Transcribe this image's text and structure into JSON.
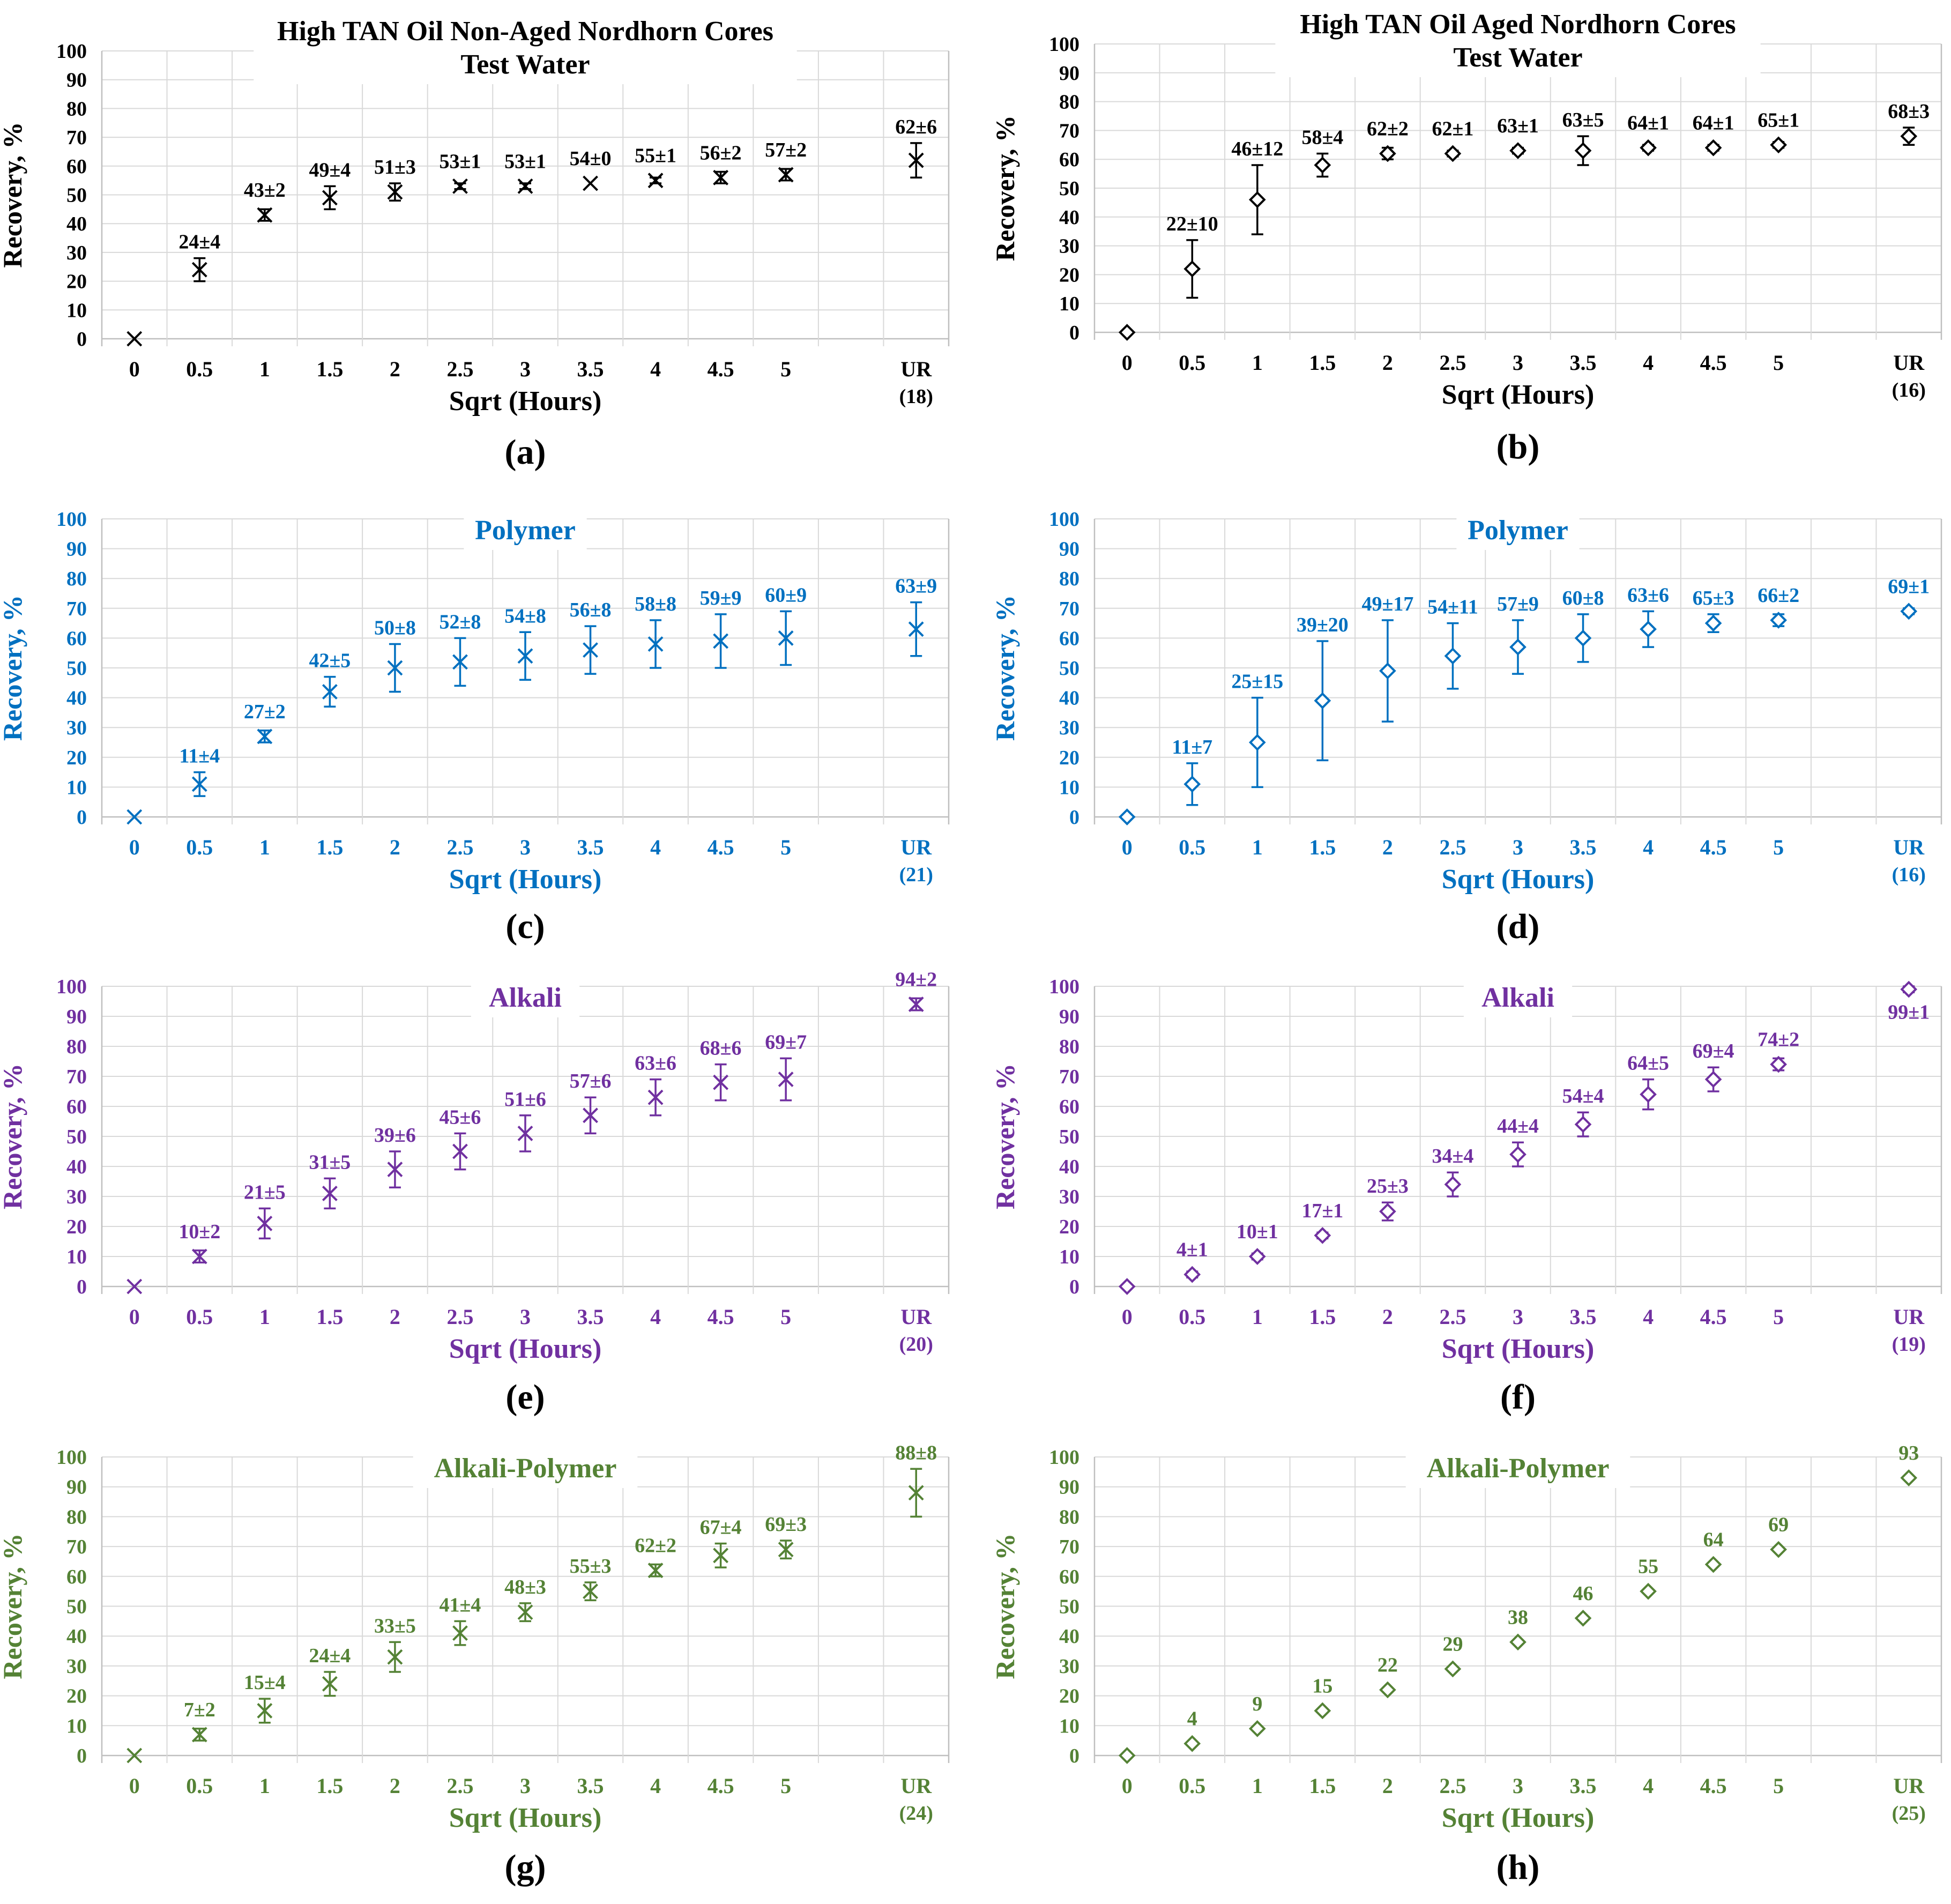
{
  "figure": {
    "panels": [
      {
        "label": "(a)",
        "chart_data": {
          "type": "scatter",
          "title": [
            "High TAN Oil Non-Aged Nordhorn Cores",
            "Test Water"
          ],
          "xlabel": "Sqrt (Hours)",
          "ylabel": "Recovery, %",
          "ylim": [
            0,
            100
          ],
          "yticks": [
            0,
            10,
            20,
            30,
            40,
            50,
            60,
            70,
            80,
            90,
            100
          ],
          "categories": [
            "0",
            "0.5",
            "1",
            "1.5",
            "2",
            "2.5",
            "3",
            "3.5",
            "4",
            "4.5",
            "5",
            "",
            "UR"
          ],
          "x_extra_label": "(18)",
          "marker": "x",
          "color": "#000000",
          "values": [
            0,
            24,
            43,
            49,
            51,
            53,
            53,
            54,
            55,
            56,
            57,
            null,
            62
          ],
          "errors": [
            0,
            4,
            2,
            4,
            3,
            1,
            1,
            0,
            1,
            2,
            2,
            null,
            6
          ],
          "data_labels": [
            "",
            "24±4",
            "43±2",
            "49±4",
            "51±3",
            "53±1",
            "53±1",
            "54±0",
            "55±1",
            "56±2",
            "57±2",
            "",
            "62±6"
          ]
        }
      },
      {
        "label": "(b)",
        "chart_data": {
          "type": "scatter",
          "title": [
            "High TAN Oil Aged Nordhorn Cores",
            "Test Water"
          ],
          "xlabel": "Sqrt (Hours)",
          "ylabel": "Recovery, %",
          "ylim": [
            0,
            100
          ],
          "yticks": [
            0,
            10,
            20,
            30,
            40,
            50,
            60,
            70,
            80,
            90,
            100
          ],
          "categories": [
            "0",
            "0.5",
            "1",
            "1.5",
            "2",
            "2.5",
            "3",
            "3.5",
            "4",
            "4.5",
            "5",
            "",
            "UR"
          ],
          "x_extra_label": "(16)",
          "marker": "diamond",
          "color": "#000000",
          "values": [
            0,
            22,
            46,
            58,
            62,
            62,
            63,
            63,
            64,
            64,
            65,
            null,
            68
          ],
          "errors": [
            0,
            10,
            12,
            4,
            2,
            1,
            1,
            5,
            1,
            1,
            1,
            null,
            3
          ],
          "data_labels": [
            "",
            "22±10",
            "46±12",
            "58±4",
            "62±2",
            "62±1",
            "63±1",
            "63±5",
            "64±1",
            "64±1",
            "65±1",
            "",
            "68±3"
          ]
        }
      },
      {
        "label": "(c)",
        "chart_data": {
          "type": "scatter",
          "title": [
            "Polymer"
          ],
          "xlabel": "Sqrt (Hours)",
          "ylabel": "Recovery, %",
          "ylim": [
            0,
            100
          ],
          "yticks": [
            0,
            10,
            20,
            30,
            40,
            50,
            60,
            70,
            80,
            90,
            100
          ],
          "categories": [
            "0",
            "0.5",
            "1",
            "1.5",
            "2",
            "2.5",
            "3",
            "3.5",
            "4",
            "4.5",
            "5",
            "",
            "UR"
          ],
          "x_extra_label": "(21)",
          "marker": "x",
          "color": "#0070c0",
          "values": [
            0,
            11,
            27,
            42,
            50,
            52,
            54,
            56,
            58,
            59,
            60,
            null,
            63
          ],
          "errors": [
            0,
            4,
            2,
            5,
            8,
            8,
            8,
            8,
            8,
            9,
            9,
            null,
            9
          ],
          "data_labels": [
            "",
            "11±4",
            "27±2",
            "42±5",
            "50±8",
            "52±8",
            "54±8",
            "56±8",
            "58±8",
            "59±9",
            "60±9",
            "",
            "63±9"
          ]
        }
      },
      {
        "label": "(d)",
        "chart_data": {
          "type": "scatter",
          "title": [
            "Polymer"
          ],
          "xlabel": "Sqrt (Hours)",
          "ylabel": "Recovery, %",
          "ylim": [
            0,
            100
          ],
          "yticks": [
            0,
            10,
            20,
            30,
            40,
            50,
            60,
            70,
            80,
            90,
            100
          ],
          "categories": [
            "0",
            "0.5",
            "1",
            "1.5",
            "2",
            "2.5",
            "3",
            "3.5",
            "4",
            "4.5",
            "5",
            "",
            "UR"
          ],
          "x_extra_label": "(16)",
          "marker": "diamond",
          "color": "#0070c0",
          "values": [
            0,
            11,
            25,
            39,
            49,
            54,
            57,
            60,
            63,
            65,
            66,
            null,
            69
          ],
          "errors": [
            0,
            7,
            15,
            20,
            17,
            11,
            9,
            8,
            6,
            3,
            2,
            null,
            1
          ],
          "data_labels": [
            "",
            "11±7",
            "25±15",
            "39±20",
            "49±17",
            "54±11",
            "57±9",
            "60±8",
            "63±6",
            "65±3",
            "66±2",
            "",
            "69±1"
          ]
        }
      },
      {
        "label": "(e)",
        "chart_data": {
          "type": "scatter",
          "title": [
            "Alkali"
          ],
          "xlabel": "Sqrt (Hours)",
          "ylabel": "Recovery, %",
          "ylim": [
            0,
            100
          ],
          "yticks": [
            0,
            10,
            20,
            30,
            40,
            50,
            60,
            70,
            80,
            90,
            100
          ],
          "categories": [
            "0",
            "0.5",
            "1",
            "1.5",
            "2",
            "2.5",
            "3",
            "3.5",
            "4",
            "4.5",
            "5",
            "",
            "UR"
          ],
          "x_extra_label": "(20)",
          "marker": "x",
          "color": "#7030a0",
          "values": [
            0,
            10,
            21,
            31,
            39,
            45,
            51,
            57,
            63,
            68,
            69,
            null,
            94
          ],
          "errors": [
            0,
            2,
            5,
            5,
            6,
            6,
            6,
            6,
            6,
            6,
            7,
            null,
            2
          ],
          "data_labels": [
            "",
            "10±2",
            "21±5",
            "31±5",
            "39±6",
            "45±6",
            "51±6",
            "57±6",
            "63±6",
            "68±6",
            "69±7",
            "",
            "94±2"
          ]
        }
      },
      {
        "label": "(f)",
        "chart_data": {
          "type": "scatter",
          "title": [
            "Alkali"
          ],
          "xlabel": "Sqrt (Hours)",
          "ylabel": "Recovery, %",
          "ylim": [
            0,
            100
          ],
          "yticks": [
            0,
            10,
            20,
            30,
            40,
            50,
            60,
            70,
            80,
            90,
            100
          ],
          "categories": [
            "0",
            "0.5",
            "1",
            "1.5",
            "2",
            "2.5",
            "3",
            "3.5",
            "4",
            "4.5",
            "5",
            "",
            "UR"
          ],
          "x_extra_label": "(19)",
          "marker": "diamond",
          "color": "#7030a0",
          "values": [
            0,
            4,
            10,
            17,
            25,
            34,
            44,
            54,
            64,
            69,
            74,
            null,
            99
          ],
          "errors": [
            0,
            1,
            1,
            1,
            3,
            4,
            4,
            4,
            5,
            4,
            2,
            null,
            1
          ],
          "data_labels": [
            "",
            "4±1",
            "10±1",
            "17±1",
            "25±3",
            "34±4",
            "44±4",
            "54±4",
            "64±5",
            "69±4",
            "74±2",
            "",
            "99±1"
          ],
          "label_below": [
            12
          ]
        }
      },
      {
        "label": "(g)",
        "chart_data": {
          "type": "scatter",
          "title": [
            "Alkali-Polymer"
          ],
          "xlabel": "Sqrt (Hours)",
          "ylabel": "Recovery, %",
          "ylim": [
            0,
            100
          ],
          "yticks": [
            0,
            10,
            20,
            30,
            40,
            50,
            60,
            70,
            80,
            90,
            100
          ],
          "categories": [
            "0",
            "0.5",
            "1",
            "1.5",
            "2",
            "2.5",
            "3",
            "3.5",
            "4",
            "4.5",
            "5",
            "",
            "UR"
          ],
          "x_extra_label": "(24)",
          "marker": "x",
          "color": "#548235",
          "values": [
            0,
            7,
            15,
            24,
            33,
            41,
            48,
            55,
            62,
            67,
            69,
            null,
            88
          ],
          "errors": [
            0,
            2,
            4,
            4,
            5,
            4,
            3,
            3,
            2,
            4,
            3,
            null,
            8
          ],
          "data_labels": [
            "",
            "7±2",
            "15±4",
            "24±4",
            "33±5",
            "41±4",
            "48±3",
            "55±3",
            "62±2",
            "67±4",
            "69±3",
            "",
            "88±8"
          ]
        }
      },
      {
        "label": "(h)",
        "chart_data": {
          "type": "scatter",
          "title": [
            "Alkali-Polymer"
          ],
          "xlabel": "Sqrt (Hours)",
          "ylabel": "Recovery, %",
          "ylim": [
            0,
            100
          ],
          "yticks": [
            0,
            10,
            20,
            30,
            40,
            50,
            60,
            70,
            80,
            90,
            100
          ],
          "categories": [
            "0",
            "0.5",
            "1",
            "1.5",
            "2",
            "2.5",
            "3",
            "3.5",
            "4",
            "4.5",
            "5",
            "",
            "UR"
          ],
          "x_extra_label": "(25)",
          "marker": "diamond",
          "color": "#548235",
          "values": [
            0,
            4,
            9,
            15,
            22,
            29,
            38,
            46,
            55,
            64,
            69,
            null,
            93
          ],
          "errors": [
            0,
            0,
            0,
            0,
            0,
            0,
            0,
            0,
            0,
            0,
            0,
            null,
            0
          ],
          "data_labels": [
            "",
            "4",
            "9",
            "15",
            "22",
            "29",
            "38",
            "46",
            "55",
            "64",
            "69",
            "",
            "93"
          ]
        }
      }
    ]
  }
}
